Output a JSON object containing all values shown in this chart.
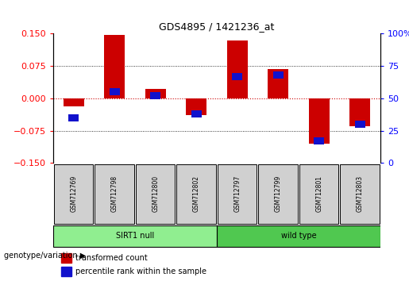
{
  "title": "GDS4895 / 1421236_at",
  "samples": [
    "GSM712769",
    "GSM712798",
    "GSM712800",
    "GSM712802",
    "GSM712797",
    "GSM712799",
    "GSM712801",
    "GSM712803"
  ],
  "transformed_count": [
    -0.018,
    0.148,
    0.022,
    -0.038,
    0.135,
    0.068,
    -0.105,
    -0.065
  ],
  "percentile_rank_raw": [
    35,
    55,
    52,
    38,
    67,
    68,
    17,
    30
  ],
  "groups": [
    {
      "label": "SIRT1 null",
      "color": "#90EE90",
      "start": 0,
      "end": 4
    },
    {
      "label": "wild type",
      "color": "#50C850",
      "start": 4,
      "end": 8
    }
  ],
  "ylim_left": [
    -0.15,
    0.15
  ],
  "ylim_right": [
    0,
    100
  ],
  "yticks_left": [
    -0.15,
    -0.075,
    0,
    0.075,
    0.15
  ],
  "yticks_right": [
    0,
    25,
    50,
    75,
    100
  ],
  "bar_color_red": "#CC0000",
  "bar_color_blue": "#1111CC",
  "zero_line_color": "#CC0000",
  "grid_color": "#000000",
  "legend_red": "transformed count",
  "legend_blue": "percentile rank within the sample",
  "genotype_label": "genotype/variation",
  "red_bar_width": 0.5,
  "blue_bar_width": 0.25,
  "chart_bg": "#FFFFFF",
  "label_box_color": "#D0D0D0"
}
